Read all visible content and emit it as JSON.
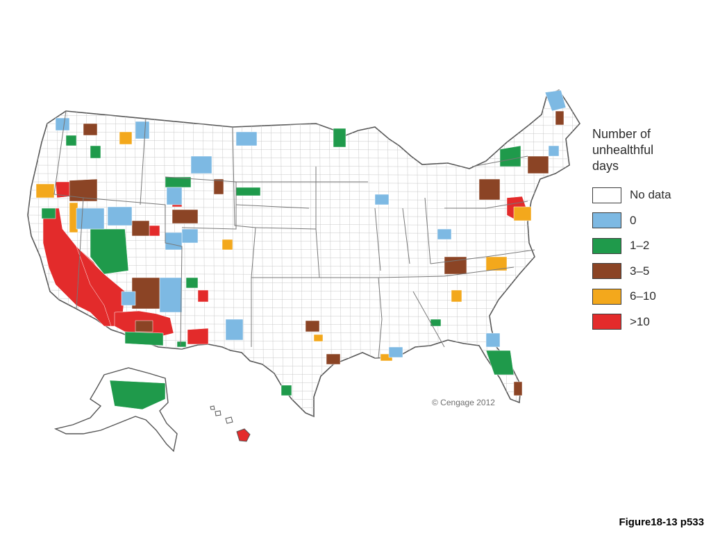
{
  "legend": {
    "title": "Number of\nunhealthful\ndays",
    "items": [
      {
        "key": "nodata",
        "label": "No data",
        "color": "#ffffff"
      },
      {
        "key": "zero",
        "label": "0",
        "color": "#7db9e3"
      },
      {
        "key": "low",
        "label": "1–2",
        "color": "#1f9a4b"
      },
      {
        "key": "mid",
        "label": "3–5",
        "color": "#8b4425"
      },
      {
        "key": "high",
        "label": "6–10",
        "color": "#f3a81c"
      },
      {
        "key": "veryhigh",
        "label": ">10",
        "color": "#e32b2b"
      }
    ]
  },
  "copyright": "© Cengage 2012",
  "figure_label": "Figure18-13 p533",
  "colors": {
    "outline": "#555555",
    "county_line": "#c8c8c8"
  }
}
